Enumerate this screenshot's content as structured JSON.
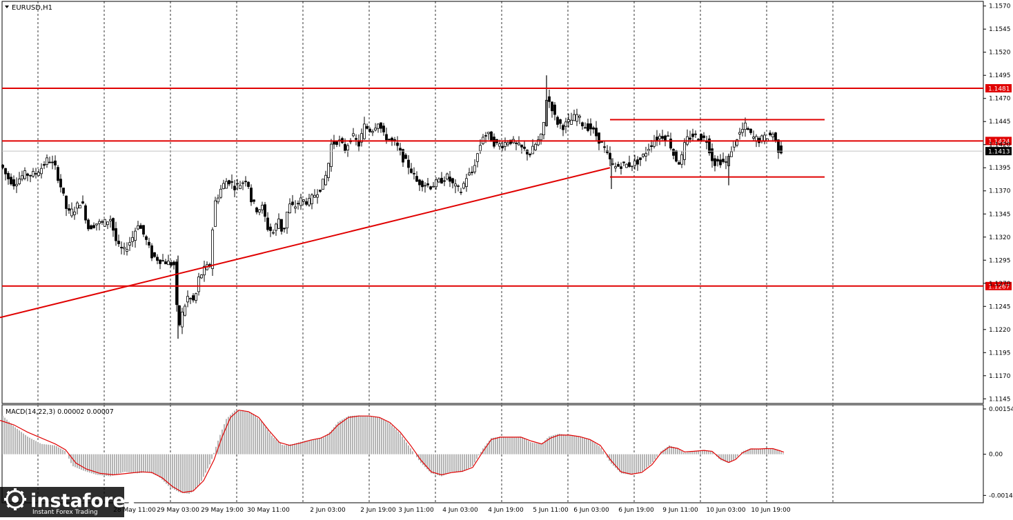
{
  "chart_title": "EURUSD,H1",
  "colors": {
    "level": "#e00000",
    "candle": "#000000",
    "grid": "#000000",
    "macd_hist": "#b4b4b4",
    "macd_signal": "#e00000",
    "current_price_bg": "#000000",
    "level_label_bg": "#e00000"
  },
  "watermark": {
    "brand": "instaforex",
    "tagline": "Instant Forex Trading"
  },
  "chart_data": [
    {
      "type": "candlestick",
      "title": "EURUSD,H1",
      "ylim": [
        1.114,
        1.1575
      ],
      "y_ticks": [
        "1.1570",
        "1.1545",
        "1.1520",
        "1.1495",
        "1.1470",
        "1.1445",
        "1.1420",
        "1.1395",
        "1.1370",
        "1.1345",
        "1.1320",
        "1.1295",
        "1.1270",
        "1.1245",
        "1.1220",
        "1.1195",
        "1.1170",
        "1.1145"
      ],
      "x_tick_labels": [
        "28 May 11:00",
        "29 May 03:00",
        "29 May 19:00",
        "30 May 11:00",
        "2 Jun 03:00",
        "2 Jun 19:00",
        "3 Jun 11:00",
        "4 Jun 03:00",
        "4 Jun 19:00",
        "5 Jun 11:00",
        "6 Jun 03:00",
        "6 Jun 19:00",
        "9 Jun 11:00",
        "10 Jun 03:00",
        "10 Jun 19:00"
      ],
      "horizontal_levels": [
        {
          "value": 1.1481,
          "label": "1.1481"
        },
        {
          "value": 1.1424,
          "label": "1.1424"
        },
        {
          "value": 1.1267,
          "label": "1.1267"
        }
      ],
      "current_price": {
        "value": 1.1413,
        "label": "1.1413"
      },
      "trendline": {
        "points": [
          [
            0,
            1.1233
          ],
          [
            884,
            1.1395
          ]
        ]
      },
      "channel": {
        "upper": 1.1447,
        "lower": 1.1385,
        "from_bar": 884,
        "to_bar": 1195
      },
      "price_path": [
        [
          2,
          1.1398
        ],
        [
          10,
          1.1385
        ],
        [
          20,
          1.1378
        ],
        [
          35,
          1.1388
        ],
        [
          50,
          1.1388
        ],
        [
          60,
          1.1395
        ],
        [
          70,
          1.1405
        ],
        [
          80,
          1.1395
        ],
        [
          90,
          1.137
        ],
        [
          98,
          1.1345
        ],
        [
          108,
          1.135
        ],
        [
          118,
          1.136
        ],
        [
          128,
          1.133
        ],
        [
          140,
          1.1335
        ],
        [
          150,
          1.1335
        ],
        [
          160,
          1.134
        ],
        [
          170,
          1.131
        ],
        [
          180,
          1.1305
        ],
        [
          192,
          1.132
        ],
        [
          200,
          1.1335
        ],
        [
          210,
          1.132
        ],
        [
          220,
          1.13
        ],
        [
          232,
          1.1295
        ],
        [
          245,
          1.1292
        ],
        [
          252,
          1.129
        ],
        [
          258,
          1.122
        ],
        [
          265,
          1.124
        ],
        [
          272,
          1.1255
        ],
        [
          282,
          1.125
        ],
        [
          288,
          1.1275
        ],
        [
          296,
          1.1285
        ],
        [
          305,
          1.129
        ],
        [
          310,
          1.1355
        ],
        [
          316,
          1.1365
        ],
        [
          322,
          1.1375
        ],
        [
          330,
          1.1382
        ],
        [
          340,
          1.1375
        ],
        [
          350,
          1.1378
        ],
        [
          358,
          1.1385
        ],
        [
          364,
          1.136
        ],
        [
          372,
          1.135
        ],
        [
          380,
          1.1352
        ],
        [
          388,
          1.133
        ],
        [
          396,
          1.1325
        ],
        [
          404,
          1.134
        ],
        [
          410,
          1.1322
        ],
        [
          418,
          1.1355
        ],
        [
          426,
          1.1352
        ],
        [
          436,
          1.136
        ],
        [
          448,
          1.1358
        ],
        [
          458,
          1.1368
        ],
        [
          466,
          1.1375
        ],
        [
          474,
          1.139
        ],
        [
          480,
          1.142
        ],
        [
          490,
          1.1425
        ],
        [
          500,
          1.1415
        ],
        [
          510,
          1.143
        ],
        [
          520,
          1.142
        ],
        [
          528,
          1.144
        ],
        [
          538,
          1.1435
        ],
        [
          548,
          1.1445
        ],
        [
          556,
          1.143
        ],
        [
          566,
          1.1425
        ],
        [
          574,
          1.142
        ],
        [
          584,
          1.1405
        ],
        [
          594,
          1.1395
        ],
        [
          604,
          1.138
        ],
        [
          614,
          1.1378
        ],
        [
          624,
          1.1375
        ],
        [
          636,
          1.138
        ],
        [
          648,
          1.1385
        ],
        [
          658,
          1.1375
        ],
        [
          668,
          1.137
        ],
        [
          676,
          1.1385
        ],
        [
          684,
          1.139
        ],
        [
          692,
          1.141
        ],
        [
          700,
          1.143
        ],
        [
          708,
          1.143
        ],
        [
          718,
          1.142
        ],
        [
          728,
          1.142
        ],
        [
          738,
          1.1425
        ],
        [
          748,
          1.142
        ],
        [
          758,
          1.1415
        ],
        [
          768,
          1.141
        ],
        [
          776,
          1.142
        ],
        [
          786,
          1.143
        ],
        [
          792,
          1.147
        ],
        [
          798,
          1.1465
        ],
        [
          806,
          1.1445
        ],
        [
          816,
          1.144
        ],
        [
          826,
          1.1445
        ],
        [
          836,
          1.1452
        ],
        [
          846,
          1.144
        ],
        [
          856,
          1.1438
        ],
        [
          864,
          1.143
        ],
        [
          874,
          1.1418
        ],
        [
          882,
          1.1405
        ],
        [
          890,
          1.1395
        ],
        [
          900,
          1.1398
        ],
        [
          910,
          1.1398
        ],
        [
          920,
          1.14
        ],
        [
          930,
          1.1405
        ],
        [
          938,
          1.1415
        ],
        [
          948,
          1.1425
        ],
        [
          958,
          1.143
        ],
        [
          968,
          1.1428
        ],
        [
          978,
          1.1405
        ],
        [
          986,
          1.14
        ],
        [
          994,
          1.1425
        ],
        [
          1004,
          1.143
        ],
        [
          1014,
          1.1428
        ],
        [
          1024,
          1.1425
        ],
        [
          1034,
          1.14
        ],
        [
          1044,
          1.1402
        ],
        [
          1054,
          1.14
        ],
        [
          1062,
          1.142
        ],
        [
          1070,
          1.143
        ],
        [
          1080,
          1.144
        ],
        [
          1090,
          1.1428
        ],
        [
          1100,
          1.1425
        ],
        [
          1110,
          1.1428
        ],
        [
          1120,
          1.1432
        ],
        [
          1128,
          1.1415
        ],
        [
          1134,
          1.1413
        ]
      ]
    },
    {
      "type": "bar+line",
      "title": "MACD(14,22,3) 0.00002 0.00007",
      "ylim": [
        -0.00165,
        0.00168
      ],
      "y_ticks": [
        "0.00154",
        "0.00",
        "-0.0014"
      ],
      "macd_path": [
        [
          0,
          0.0014
        ],
        [
          20,
          0.00095
        ],
        [
          40,
          0.0006
        ],
        [
          60,
          0.00035
        ],
        [
          80,
          0.0003
        ],
        [
          95,
          0.0001
        ],
        [
          105,
          -0.0004
        ],
        [
          120,
          -0.00055
        ],
        [
          140,
          -0.0007
        ],
        [
          160,
          -0.00075
        ],
        [
          180,
          -0.0006
        ],
        [
          200,
          -0.00065
        ],
        [
          215,
          -0.0006
        ],
        [
          230,
          -0.00075
        ],
        [
          245,
          -0.0011
        ],
        [
          260,
          -0.0013
        ],
        [
          275,
          -0.00135
        ],
        [
          290,
          -0.001
        ],
        [
          305,
          -0.0003
        ],
        [
          318,
          0.0006
        ],
        [
          328,
          0.0012
        ],
        [
          340,
          0.00148
        ],
        [
          352,
          0.0015
        ],
        [
          365,
          0.0014
        ],
        [
          380,
          0.0011
        ],
        [
          395,
          0.0006
        ],
        [
          410,
          0.0003
        ],
        [
          425,
          0.00035
        ],
        [
          440,
          0.00045
        ],
        [
          455,
          0.0005
        ],
        [
          470,
          0.00058
        ],
        [
          480,
          0.0008
        ],
        [
          490,
          0.0011
        ],
        [
          505,
          0.0013
        ],
        [
          520,
          0.00132
        ],
        [
          535,
          0.0013
        ],
        [
          550,
          0.00125
        ],
        [
          565,
          0.00105
        ],
        [
          580,
          0.0007
        ],
        [
          595,
          0.0002
        ],
        [
          610,
          -0.0003
        ],
        [
          625,
          -0.00065
        ],
        [
          640,
          -0.00075
        ],
        [
          655,
          -0.0006
        ],
        [
          670,
          -0.0006
        ],
        [
          685,
          -0.0004
        ],
        [
          700,
          0.0002
        ],
        [
          712,
          0.00055
        ],
        [
          725,
          0.0006
        ],
        [
          740,
          0.00058
        ],
        [
          755,
          0.0006
        ],
        [
          770,
          0.0004
        ],
        [
          785,
          0.00035
        ],
        [
          795,
          0.0006
        ],
        [
          810,
          0.0007
        ],
        [
          825,
          0.00065
        ],
        [
          840,
          0.0006
        ],
        [
          855,
          0.0005
        ],
        [
          870,
          0.00025
        ],
        [
          885,
          -0.0003
        ],
        [
          900,
          -0.00065
        ],
        [
          915,
          -0.0007
        ],
        [
          930,
          -0.0006
        ],
        [
          945,
          -0.0003
        ],
        [
          958,
          0.0001
        ],
        [
          970,
          0.0003
        ],
        [
          982,
          0.0002
        ],
        [
          992,
          5e-05
        ],
        [
          1005,
          0.0001
        ],
        [
          1020,
          0.00015
        ],
        [
          1032,
          0.0001
        ],
        [
          1044,
          -0.0002
        ],
        [
          1056,
          -0.0003
        ],
        [
          1066,
          -0.00015
        ],
        [
          1076,
          0.0001
        ],
        [
          1088,
          0.0002
        ],
        [
          1100,
          0.00018
        ],
        [
          1110,
          0.0002
        ],
        [
          1120,
          0.0002
        ],
        [
          1130,
          0.0001
        ],
        [
          1136,
          2e-05
        ]
      ],
      "signal_path": [
        [
          0,
          0.00115
        ],
        [
          20,
          0.001
        ],
        [
          40,
          0.00075
        ],
        [
          60,
          0.00055
        ],
        [
          80,
          0.00035
        ],
        [
          95,
          0.00015
        ],
        [
          110,
          -0.0003
        ],
        [
          125,
          -0.0005
        ],
        [
          145,
          -0.00065
        ],
        [
          165,
          -0.0007
        ],
        [
          185,
          -0.00065
        ],
        [
          205,
          -0.0006
        ],
        [
          220,
          -0.00062
        ],
        [
          235,
          -0.0008
        ],
        [
          250,
          -0.0011
        ],
        [
          265,
          -0.0013
        ],
        [
          280,
          -0.00125
        ],
        [
          295,
          -0.0009
        ],
        [
          310,
          -0.0002
        ],
        [
          322,
          0.0006
        ],
        [
          334,
          0.00125
        ],
        [
          346,
          0.0015
        ],
        [
          360,
          0.00145
        ],
        [
          375,
          0.00125
        ],
        [
          390,
          0.0008
        ],
        [
          405,
          0.0004
        ],
        [
          420,
          0.0003
        ],
        [
          435,
          0.00038
        ],
        [
          450,
          0.00048
        ],
        [
          465,
          0.00055
        ],
        [
          478,
          0.0007
        ],
        [
          490,
          0.001
        ],
        [
          505,
          0.00125
        ],
        [
          520,
          0.0013
        ],
        [
          535,
          0.0013
        ],
        [
          550,
          0.00125
        ],
        [
          565,
          0.00108
        ],
        [
          580,
          0.00075
        ],
        [
          595,
          0.0003
        ],
        [
          610,
          -0.0002
        ],
        [
          625,
          -0.0006
        ],
        [
          640,
          -0.0007
        ],
        [
          655,
          -0.00062
        ],
        [
          670,
          -0.00058
        ],
        [
          685,
          -0.00045
        ],
        [
          700,
          0.0001
        ],
        [
          712,
          0.0005
        ],
        [
          725,
          0.00058
        ],
        [
          740,
          0.00058
        ],
        [
          755,
          0.00058
        ],
        [
          770,
          0.00045
        ],
        [
          785,
          0.00035
        ],
        [
          798,
          0.00055
        ],
        [
          810,
          0.00065
        ],
        [
          825,
          0.00065
        ],
        [
          840,
          0.0006
        ],
        [
          855,
          0.0005
        ],
        [
          870,
          0.0003
        ],
        [
          885,
          -0.0002
        ],
        [
          900,
          -0.0006
        ],
        [
          915,
          -0.00068
        ],
        [
          930,
          -0.00062
        ],
        [
          945,
          -0.00035
        ],
        [
          958,
          5e-05
        ],
        [
          970,
          0.00025
        ],
        [
          982,
          0.0002
        ],
        [
          992,
          8e-05
        ],
        [
          1005,
          0.0001
        ],
        [
          1020,
          0.00013
        ],
        [
          1032,
          0.0001
        ],
        [
          1044,
          -0.00015
        ],
        [
          1056,
          -0.00028
        ],
        [
          1066,
          -0.00018
        ],
        [
          1076,
          5e-05
        ],
        [
          1088,
          0.00018
        ],
        [
          1100,
          0.00018
        ],
        [
          1110,
          0.00019
        ],
        [
          1120,
          0.00019
        ],
        [
          1130,
          0.00012
        ],
        [
          1136,
          7e-05
        ]
      ]
    }
  ]
}
